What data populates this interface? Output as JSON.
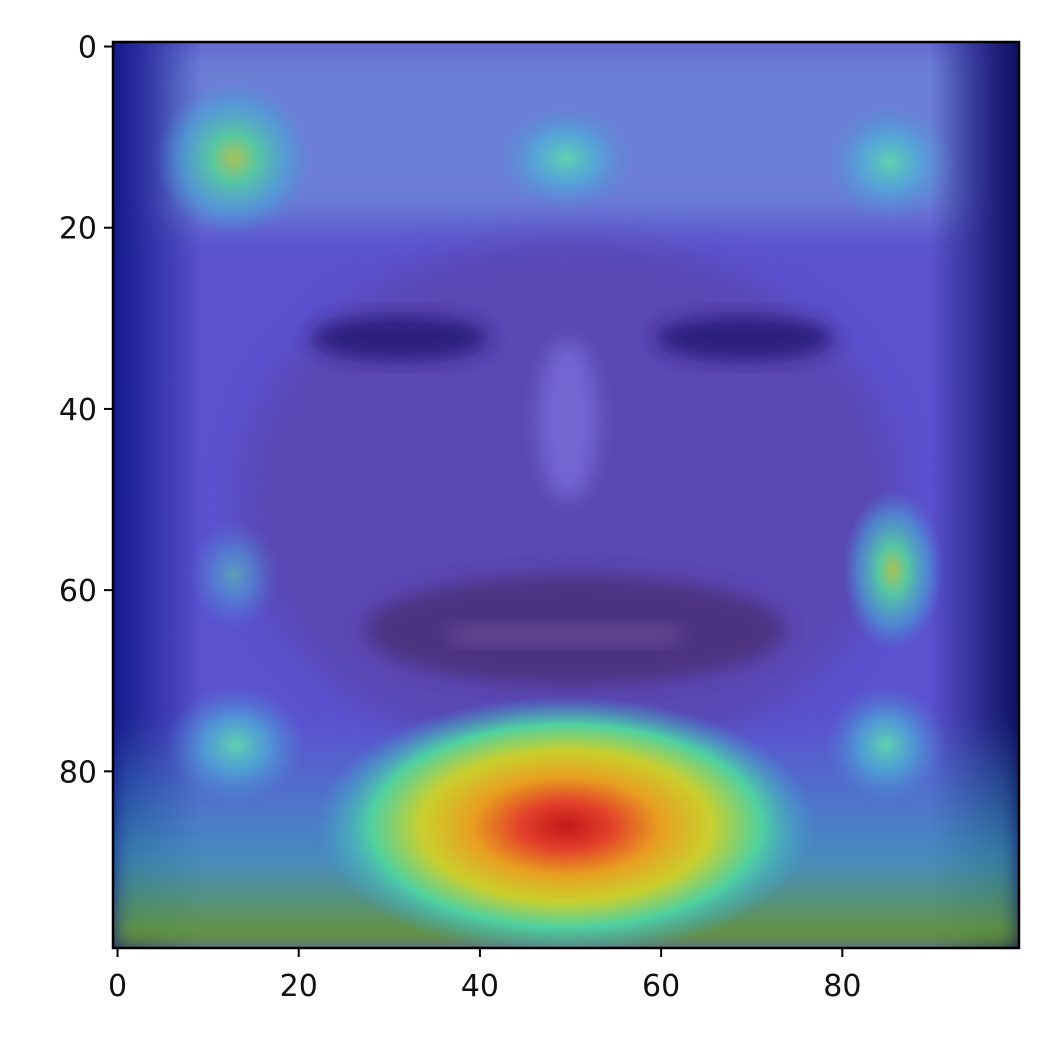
{
  "image": {
    "kind": "heatmap-overlay",
    "description_colormap": "jet",
    "colors": {
      "background_tint": "#5a4fd0",
      "frame": "#000000"
    }
  },
  "chart_data": {
    "type": "heatmap",
    "title": "",
    "xlabel": "",
    "ylabel": "",
    "xlim": [
      -0.5,
      99.5
    ],
    "ylim": [
      99.5,
      -0.5
    ],
    "x_ticks": [
      0,
      20,
      40,
      60,
      80
    ],
    "y_ticks": [
      0,
      20,
      40,
      60,
      80
    ],
    "x_tick_labels": [
      "0",
      "20",
      "40",
      "60",
      "80"
    ],
    "y_tick_labels": [
      "0",
      "20",
      "40",
      "60",
      "80"
    ],
    "grid": false,
    "colormap": "jet",
    "hotspots": [
      {
        "x": 49,
        "y": 86,
        "intensity": 1.0
      },
      {
        "x": 13,
        "y": 12,
        "intensity": 0.55
      },
      {
        "x": 49,
        "y": 12,
        "intensity": 0.45
      },
      {
        "x": 86,
        "y": 12,
        "intensity": 0.45
      },
      {
        "x": 86,
        "y": 58,
        "intensity": 0.5
      },
      {
        "x": 13,
        "y": 77,
        "intensity": 0.45
      },
      {
        "x": 86,
        "y": 77,
        "intensity": 0.45
      },
      {
        "x": 13,
        "y": 58,
        "intensity": 0.3
      }
    ]
  }
}
